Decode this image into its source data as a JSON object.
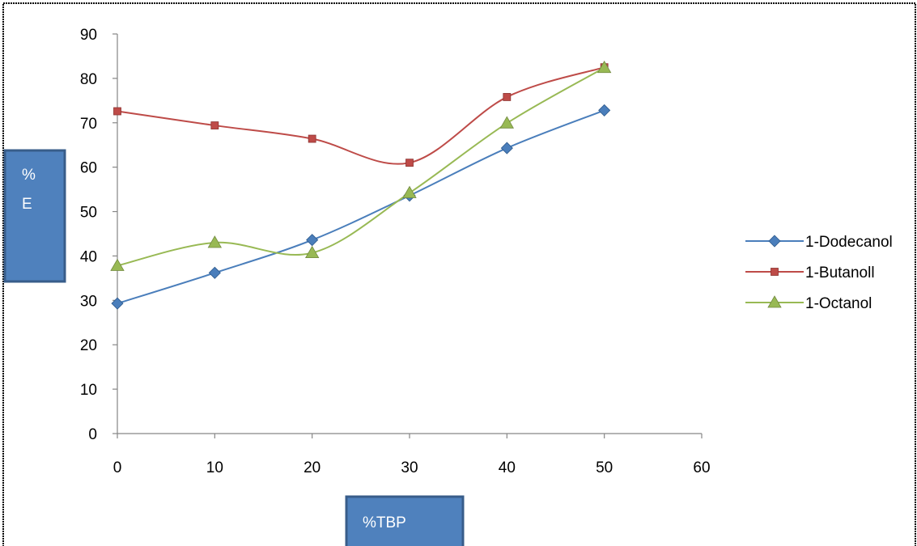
{
  "chart_data": {
    "type": "line",
    "title": "",
    "xlabel": "%TBP",
    "ylabel_lines": [
      "%",
      "E"
    ],
    "x_ticks": [
      0,
      10,
      20,
      30,
      40,
      50,
      60
    ],
    "y_ticks": [
      0,
      10,
      20,
      30,
      40,
      50,
      60,
      70,
      80,
      90
    ],
    "xlim": [
      0,
      60
    ],
    "ylim": [
      0,
      90
    ],
    "grid": false,
    "legend_position": "right",
    "smooth": true,
    "x": [
      0,
      10,
      20,
      30,
      40,
      50
    ],
    "series": [
      {
        "name": "1-Dodecanol",
        "marker": "diamond",
        "color": "#4a7ebb",
        "values": [
          29.3,
          36.2,
          43.6,
          53.6,
          64.3,
          72.8
        ]
      },
      {
        "name": "1-Butanoll",
        "marker": "square",
        "color": "#be4b48",
        "values": [
          72.6,
          69.4,
          66.4,
          61.0,
          75.8,
          82.5
        ]
      },
      {
        "name": "1-Octanol",
        "marker": "triangle",
        "color": "#98b954",
        "values": [
          37.8,
          43.0,
          40.7,
          54.2,
          69.9,
          82.4
        ]
      }
    ]
  }
}
